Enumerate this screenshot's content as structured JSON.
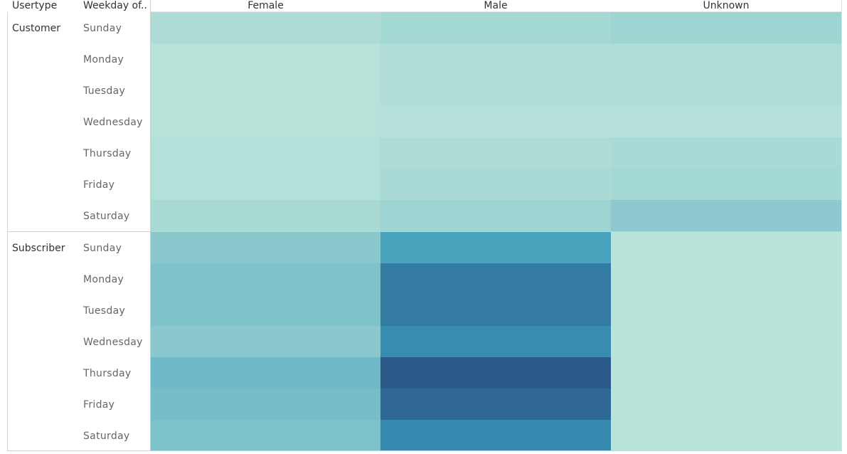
{
  "header": {
    "usertype_label": "Usertype",
    "weekday_label": "Weekday of.."
  },
  "chart_data": {
    "type": "heatmap",
    "title": "",
    "columns": [
      "Female",
      "Male",
      "Unknown"
    ],
    "row_groups": [
      "Customer",
      "Subscriber"
    ],
    "rows": [
      "Sunday",
      "Monday",
      "Tuesday",
      "Wednesday",
      "Thursday",
      "Friday",
      "Saturday"
    ],
    "colors": {
      "Customer": [
        [
          "#aedbd5",
          "#a5d9d4",
          "#9ed5d3"
        ],
        [
          "#b8e2d9",
          "#b0ddd8",
          "#b0dcd8"
        ],
        [
          "#b8e2d9",
          "#b0ddd8",
          "#b0dcd8"
        ],
        [
          "#b8e2d9",
          "#b6e1da",
          "#b6e1da"
        ],
        [
          "#b3e0d8",
          "#aedbd6",
          "#a9dad5"
        ],
        [
          "#b3e0d8",
          "#aadad5",
          "#a5d9d4"
        ],
        [
          "#a8d9d3",
          "#9ed5d3",
          "#8dc9ce"
        ]
      ],
      "Subscriber": [
        [
          "#8ac8cd",
          "#48a4bd",
          "#b9e4d9"
        ],
        [
          "#80c2ca",
          "#347ba3",
          "#b9e4d9"
        ],
        [
          "#80c2ca",
          "#347ba3",
          "#b9e4d9"
        ],
        [
          "#8ac8cd",
          "#378caf",
          "#b9e4d9"
        ],
        [
          "#6fb9c8",
          "#2b5a89",
          "#b9e4d9"
        ],
        [
          "#76bdc8",
          "#2f6895",
          "#b9e4d9"
        ],
        [
          "#7dc1ca",
          "#3789b0",
          "#b9e4d9"
        ]
      ]
    }
  }
}
